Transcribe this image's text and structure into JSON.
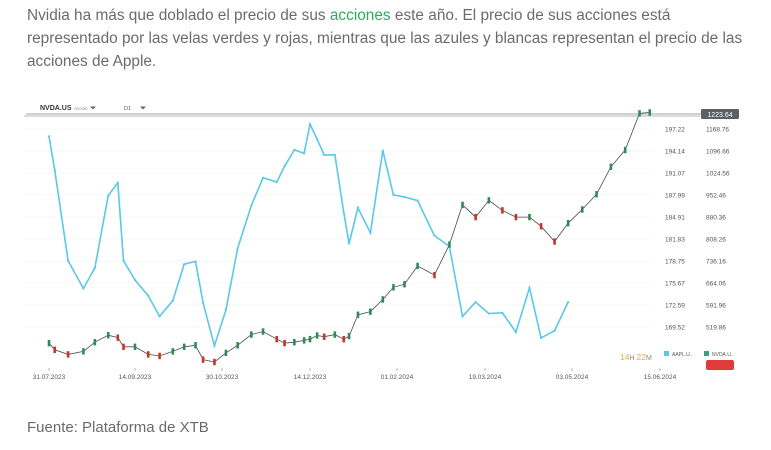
{
  "intro": {
    "before": "Nvidia ha más que doblado el precio de sus ",
    "link": "acciones",
    "after": " este año. El precio de sus acciones está representado por las velas verdes y rojas, mientras que las azules y blancas representan el precio de las acciones de Apple."
  },
  "toolbar": {
    "symbol": "NVDA.US",
    "symbol_sub": "Acción",
    "interval": "D1"
  },
  "current_price": "1223.64",
  "countdown": {
    "hours": "14",
    "h": "H",
    "minutes": "22",
    "m": "M"
  },
  "legend": [
    {
      "label": "AAPL.U..",
      "color": "#5bc8e6"
    },
    {
      "label": "NVDA.U..",
      "color": "#3aa37b"
    }
  ],
  "source": "Fuente: Plataforma de XTB",
  "colors": {
    "apple": "#5bc8e6",
    "nvda_up": "#2e8b57",
    "nvda_down": "#c0392b",
    "price_badge": "#e8a83a",
    "red_badge": "#e03a3a"
  },
  "chart_data": {
    "type": "line",
    "x_ticks": [
      "31.07.2023",
      "14.09.2023",
      "30.10.2023",
      "14.12.2023",
      "01.02.2024",
      "19.03.2024",
      "03.05.2024",
      "15.06.2024"
    ],
    "y_left_ticks": [
      "197.22",
      "194.14",
      "191.07",
      "187.99",
      "184.91",
      "181.83",
      "178.75",
      "175.67",
      "172.59",
      "169.52"
    ],
    "y_right_ticks": [
      "1168.76",
      "1096.66",
      "1024.56",
      "952.46",
      "880.36",
      "808.26",
      "736.16",
      "664.06",
      "591.96",
      "519.86"
    ],
    "apple": {
      "name": "AAPL.U..",
      "dates": [
        "2023-07-31",
        "2023-08-03",
        "2023-08-10",
        "2023-08-18",
        "2023-08-24",
        "2023-08-31",
        "2023-09-05",
        "2023-09-08",
        "2023-09-14",
        "2023-09-21",
        "2023-09-27",
        "2023-10-04",
        "2023-10-10",
        "2023-10-16",
        "2023-10-20",
        "2023-10-26",
        "2023-11-01",
        "2023-11-07",
        "2023-11-14",
        "2023-11-20",
        "2023-11-27",
        "2023-12-01",
        "2023-12-06",
        "2023-12-11",
        "2023-12-14",
        "2023-12-18",
        "2023-12-22",
        "2023-12-28",
        "2024-01-02",
        "2024-01-05",
        "2024-01-10",
        "2024-01-17",
        "2024-01-24",
        "2024-01-30",
        "2024-02-05",
        "2024-02-12",
        "2024-02-21",
        "2024-02-29",
        "2024-03-07",
        "2024-03-14",
        "2024-03-21",
        "2024-03-28",
        "2024-04-04",
        "2024-04-11",
        "2024-04-17",
        "2024-04-24",
        "2024-05-01"
      ],
      "close": [
        196.2,
        191.5,
        178.8,
        174.9,
        177.8,
        187.9,
        189.7,
        178.8,
        176.1,
        173.9,
        171.0,
        173.2,
        178.3,
        178.7,
        172.9,
        166.9,
        171.9,
        180.5,
        186.5,
        190.4,
        189.8,
        192.0,
        194.3,
        193.8,
        197.9,
        195.8,
        193.6,
        193.6,
        185.6,
        181.2,
        186.2,
        182.7,
        194.2,
        188.0,
        187.7,
        187.2,
        182.3,
        180.8,
        171.0,
        173.0,
        171.4,
        171.5,
        168.8,
        175.0,
        168.0,
        169.0,
        173.0
      ]
    },
    "nvda": {
      "name": "NVDA.U..",
      "dates": [
        "2023-07-31",
        "2023-08-03",
        "2023-08-10",
        "2023-08-18",
        "2023-08-24",
        "2023-08-31",
        "2023-09-05",
        "2023-09-08",
        "2023-09-14",
        "2023-09-21",
        "2023-09-27",
        "2023-10-04",
        "2023-10-10",
        "2023-10-16",
        "2023-10-20",
        "2023-10-26",
        "2023-11-01",
        "2023-11-07",
        "2023-11-14",
        "2023-11-20",
        "2023-11-27",
        "2023-12-01",
        "2023-12-06",
        "2023-12-11",
        "2023-12-14",
        "2023-12-18",
        "2023-12-22",
        "2023-12-28",
        "2024-01-02",
        "2024-01-05",
        "2024-01-10",
        "2024-01-17",
        "2024-01-24",
        "2024-01-30",
        "2024-02-05",
        "2024-02-12",
        "2024-02-21",
        "2024-02-29",
        "2024-03-07",
        "2024-03-14",
        "2024-03-21",
        "2024-03-28",
        "2024-04-04",
        "2024-04-11",
        "2024-04-17",
        "2024-04-24",
        "2024-05-01",
        "2024-05-08",
        "2024-05-15",
        "2024-05-22",
        "2024-05-29",
        "2024-06-05",
        "2024-06-10"
      ],
      "close": [
        467,
        445,
        430,
        440,
        470,
        493,
        485,
        455,
        455,
        430,
        425,
        440,
        455,
        460,
        413,
        405,
        435,
        460,
        495,
        505,
        480,
        467,
        470,
        476,
        480,
        492,
        488,
        495,
        480,
        490,
        560,
        570,
        610,
        650,
        660,
        720,
        690,
        790,
        920,
        880,
        935,
        902,
        880,
        880,
        850,
        800,
        860,
        905,
        955,
        1045,
        1100,
        1220,
        1223
      ]
    }
  }
}
